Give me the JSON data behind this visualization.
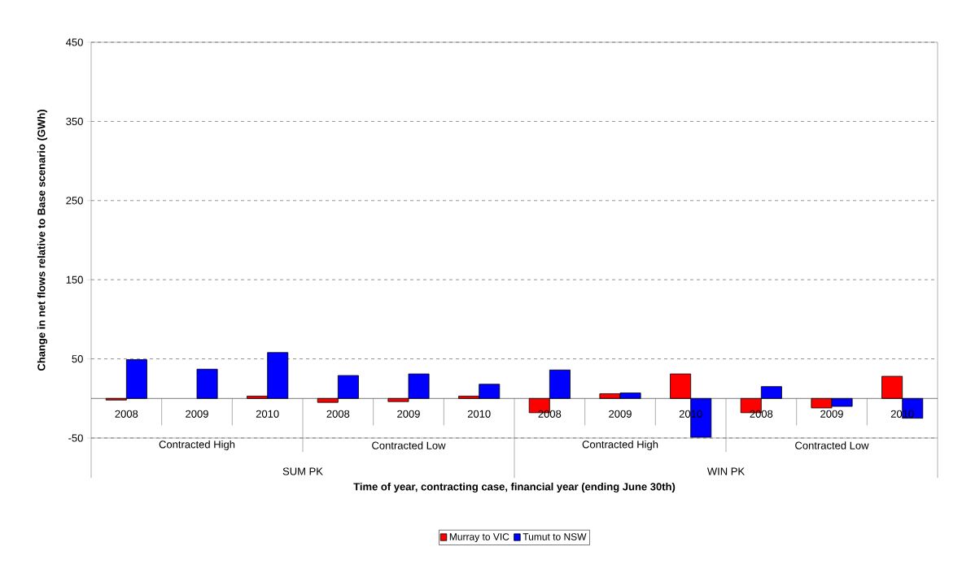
{
  "chart_data": {
    "type": "bar",
    "xlabel": "Time of year, contracting case, financial year (ending June 30th)",
    "ylabel": "Change in net flows relative to Base scenario (GWh)",
    "categories": [
      "2008",
      "2009",
      "2010",
      "2008",
      "2009",
      "2010",
      "2008",
      "2009",
      "2010",
      "2008",
      "2009",
      "2010"
    ],
    "series": [
      {
        "name": "Murray to VIC",
        "color": "#ff0000",
        "values": [
          -2,
          null,
          3,
          -5,
          -4,
          3,
          -18,
          6,
          31,
          -18,
          -12,
          28
        ]
      },
      {
        "name": "Tumut to NSW",
        "color": "#0000ff",
        "values": [
          49,
          37,
          58,
          29,
          31,
          18,
          36,
          7,
          -49,
          15,
          -10,
          -25
        ]
      }
    ],
    "ylim": [
      -50,
      450
    ],
    "yticks": [
      -50,
      50,
      150,
      250,
      350,
      450
    ],
    "grid": "y",
    "legend": "bottom",
    "annotations": [
      "Contracted High",
      "Contracted Low",
      "Contracted High",
      "Contracted Low",
      "SUM PK",
      "WIN PK"
    ]
  }
}
